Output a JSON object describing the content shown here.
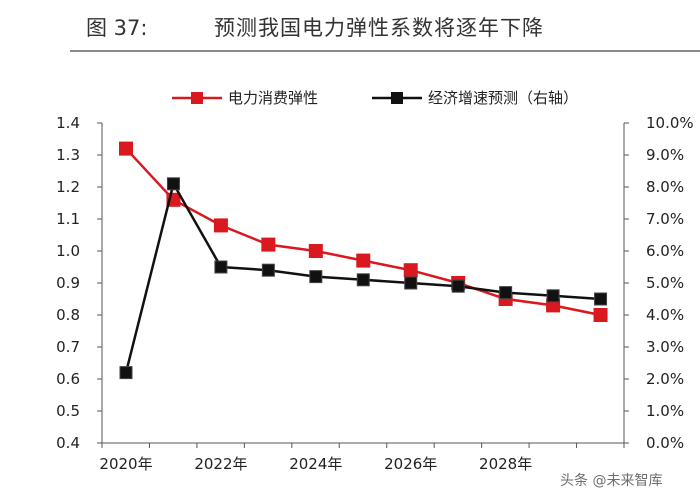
{
  "figure": {
    "number": "图 37:",
    "title": "预测我国电力弹性系数将逐年下降"
  },
  "chart_data": {
    "type": "line",
    "x": [
      2020,
      2021,
      2022,
      2023,
      2024,
      2025,
      2026,
      2027,
      2028,
      2029,
      2030
    ],
    "x_tick_labels": [
      "2020年",
      "2022年",
      "2024年",
      "2026年",
      "2028年"
    ],
    "x_tick_values": [
      2020,
      2022,
      2024,
      2026,
      2028
    ],
    "y_left": {
      "lim": [
        0.4,
        1.4
      ],
      "ticks": [
        "0.4",
        "0.5",
        "0.6",
        "0.7",
        "0.8",
        "0.9",
        "1.0",
        "1.1",
        "1.2",
        "1.3",
        "1.4"
      ]
    },
    "y_right": {
      "lim": [
        0,
        10
      ],
      "unit": "%",
      "ticks": [
        "0.0%",
        "1.0%",
        "2.0%",
        "3.0%",
        "4.0%",
        "5.0%",
        "6.0%",
        "7.0%",
        "8.0%",
        "9.0%",
        "10.0%"
      ]
    },
    "series": [
      {
        "name": "电力消费弹性",
        "axis": "left",
        "color": "#d9181f",
        "values": [
          1.32,
          1.16,
          1.08,
          1.02,
          1.0,
          0.97,
          0.94,
          0.9,
          0.85,
          0.83,
          0.8
        ]
      },
      {
        "name": "经济增速预测（右轴）",
        "axis": "right",
        "color": "#111111",
        "values": [
          2.2,
          8.1,
          5.5,
          5.4,
          5.2,
          5.1,
          5.0,
          4.9,
          4.7,
          4.6,
          4.5
        ]
      }
    ],
    "legend_position": "top-center",
    "grid": false
  },
  "watermark": "头条 @未来智库"
}
